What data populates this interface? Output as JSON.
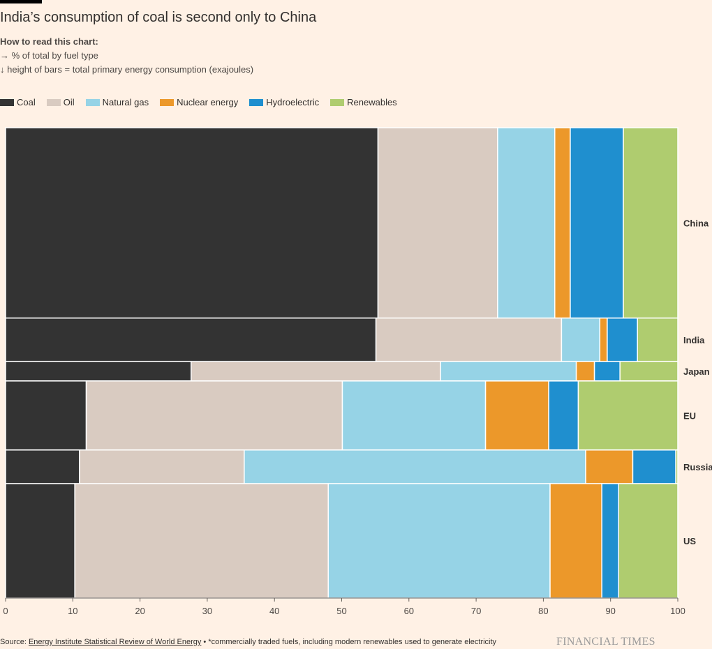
{
  "title": "India’s consumption of coal is second only to China",
  "howto": {
    "heading": "How to read this chart:",
    "line1": "→  % of total by fuel type",
    "line2": "↓ height of bars = total primary energy consumption (exajoules)"
  },
  "footer": {
    "source_prefix": "Source: ",
    "source_link": "Energy Institute Statistical Review of World Energy",
    "source_note": " • *commercially traded fuels, including modern renewables used to generate electricity",
    "brand": "FINANCIAL TIMES"
  },
  "colors": {
    "background": "#fff1e5",
    "coal": "#333333",
    "oil": "#d9cbc1",
    "gas": "#96d3e6",
    "nuclear": "#ec982a",
    "hydro": "#1f8fcf",
    "renewables": "#afcc6f"
  },
  "chart_data": {
    "type": "bar",
    "subtype": "marimekko",
    "series": [
      {
        "name": "Coal",
        "color": "#333333"
      },
      {
        "name": "Oil",
        "color": "#d9cbc1"
      },
      {
        "name": "Natural gas",
        "color": "#96d3e6"
      },
      {
        "name": "Nuclear energy",
        "color": "#ec982a"
      },
      {
        "name": "Hydroelectric",
        "color": "#1f8fcf"
      },
      {
        "name": "Renewables",
        "color": "#afcc6f"
      }
    ],
    "categories": [
      "China",
      "India",
      "Japan",
      "EU",
      "Russia",
      "US"
    ],
    "totals_exajoules": [
      170.7,
      39.0,
      17.4,
      61.9,
      30.2,
      102.6
    ],
    "shares_percent": [
      [
        55.4,
        17.8,
        8.5,
        2.3,
        7.9,
        8.1
      ],
      [
        55.1,
        27.6,
        5.7,
        1.1,
        4.5,
        6.0
      ],
      [
        27.6,
        37.1,
        20.2,
        2.7,
        3.8,
        8.6
      ],
      [
        12.0,
        38.1,
        21.3,
        9.4,
        4.4,
        14.8
      ],
      [
        11.0,
        24.5,
        50.8,
        7.0,
        6.4,
        0.3
      ],
      [
        10.3,
        37.7,
        33.0,
        7.7,
        2.5,
        8.8
      ]
    ],
    "x_ticks": [
      0,
      10,
      20,
      30,
      40,
      50,
      60,
      70,
      80,
      90,
      100
    ],
    "xlim": [
      0,
      100
    ],
    "legend_position": "top-left",
    "grid": false
  }
}
